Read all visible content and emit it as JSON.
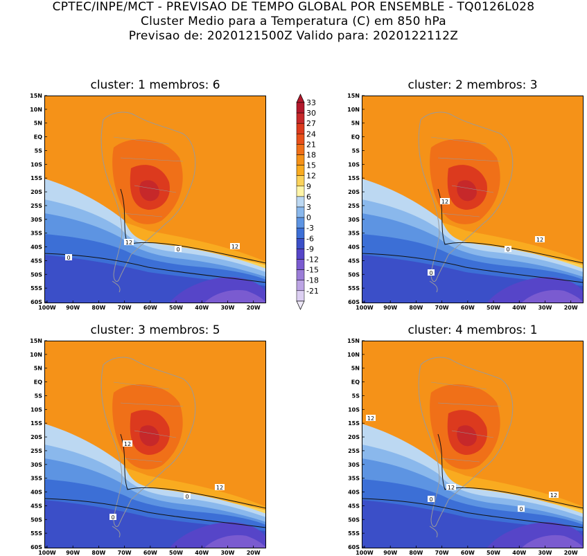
{
  "header": {
    "line1": "CPTEC/INPE/MCT - PREVISAO DE TEMPO GLOBAL POR ENSEMBLE - TQ0126L028",
    "line2": "Cluster Medio para a Temperatura (C) em 850 hPa",
    "line3": "Previsao de: 2020121500Z   Valido para: 2020122112Z"
  },
  "panels": [
    {
      "title": "cluster: 1   membros: 6",
      "contour_labels": [
        "0",
        "0",
        "12",
        "12"
      ]
    },
    {
      "title": "cluster: 2   membros: 3",
      "contour_labels": [
        "12",
        "12",
        "0",
        "0"
      ]
    },
    {
      "title": "cluster: 3   membros: 5",
      "contour_labels": [
        "12",
        "12",
        "0",
        "0"
      ]
    },
    {
      "title": "cluster: 4   membros: 1",
      "contour_labels": [
        "12",
        "12",
        "12",
        "0",
        "0"
      ]
    }
  ],
  "axes": {
    "lat_labels": [
      "15N",
      "10N",
      "5N",
      "EQ",
      "5S",
      "10S",
      "15S",
      "20S",
      "25S",
      "30S",
      "35S",
      "40S",
      "45S",
      "50S",
      "55S",
      "60S"
    ],
    "lon_labels": [
      "100W",
      "90W",
      "80W",
      "70W",
      "60W",
      "50W",
      "40W",
      "30W",
      "20W"
    ]
  },
  "colorbar": {
    "labels": [
      "33",
      "30",
      "27",
      "24",
      "21",
      "18",
      "15",
      "12",
      "9",
      "6",
      "3",
      "0",
      "-3",
      "-6",
      "-9",
      "-12",
      "-15",
      "-18",
      "-21"
    ],
    "colors": [
      "#b2182b",
      "#c6282a",
      "#dc3a1e",
      "#e8501a",
      "#f07018",
      "#f59218",
      "#f9ab20",
      "#fbd25a",
      "#fff5a8",
      "#bcd8f2",
      "#8ab8ec",
      "#5d94e2",
      "#3c6fd6",
      "#3b4fc8",
      "#5645c8",
      "#7a5bd0",
      "#9b7dd8",
      "#bca4e4",
      "#dccff2"
    ]
  }
}
